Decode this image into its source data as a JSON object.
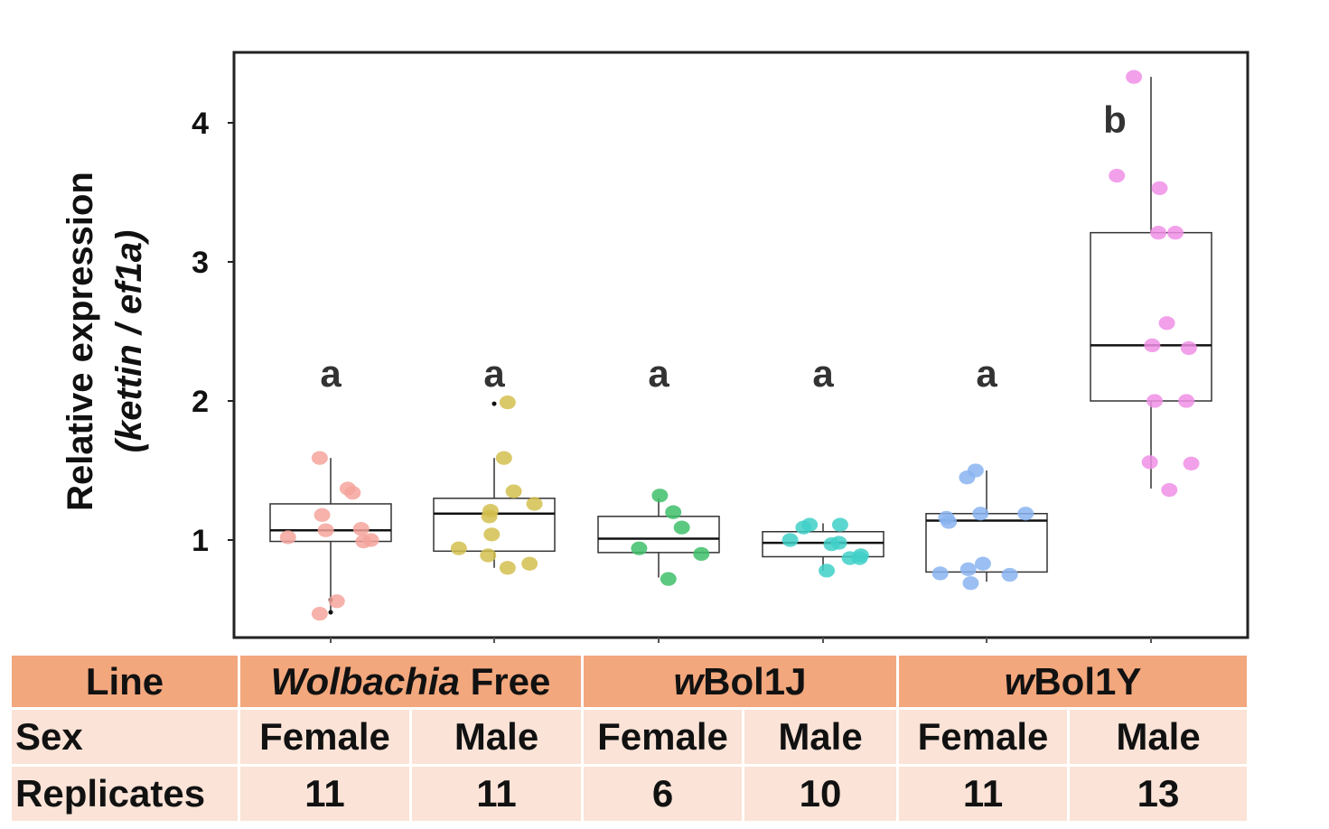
{
  "chart_data": {
    "type": "box",
    "title": "",
    "xlabel": "",
    "ylabel": "Relative expression",
    "ylabel_line2": "(kettin / ef1a)",
    "yticks": [
      1,
      2,
      3,
      4
    ],
    "ylim": [
      0.3,
      4.5
    ],
    "grid": false,
    "point_size": 9,
    "groups": [
      {
        "color": "#f4a49c",
        "letter": "a",
        "box": {
          "whisker_low": 0.47,
          "q1": 0.99,
          "median": 1.07,
          "q3": 1.26,
          "whisker_high": 1.59
        },
        "outliers": [
          0.48,
          0.57
        ],
        "points": [
          [
            -0.35,
            1.02
          ],
          [
            -0.09,
            1.59
          ],
          [
            -0.07,
            1.18
          ],
          [
            -0.04,
            1.07
          ],
          [
            0.14,
            1.37
          ],
          [
            0.18,
            1.34
          ],
          [
            0.25,
            1.08
          ],
          [
            0.27,
            0.99
          ],
          [
            0.33,
            1.0
          ],
          [
            0.05,
            0.56
          ],
          [
            -0.09,
            0.47
          ]
        ]
      },
      {
        "color": "#d4bf4f",
        "letter": "a",
        "box": {
          "whisker_low": 0.8,
          "q1": 0.92,
          "median": 1.19,
          "q3": 1.3,
          "whisker_high": 1.59
        },
        "outliers": [
          1.98
        ],
        "points": [
          [
            0.11,
            1.99
          ],
          [
            0.08,
            1.59
          ],
          [
            -0.03,
            1.21
          ],
          [
            -0.04,
            1.17
          ],
          [
            0.16,
            1.35
          ],
          [
            0.33,
            1.26
          ],
          [
            -0.29,
            0.94
          ],
          [
            -0.02,
            1.04
          ],
          [
            -0.05,
            0.89
          ],
          [
            0.11,
            0.8
          ],
          [
            0.29,
            0.83
          ]
        ]
      },
      {
        "color": "#3fc06a",
        "letter": "a",
        "box": {
          "whisker_low": 0.73,
          "q1": 0.91,
          "median": 1.01,
          "q3": 1.17,
          "whisker_high": 1.3
        },
        "outliers": [],
        "points": [
          [
            0.01,
            1.32
          ],
          [
            0.12,
            1.2
          ],
          [
            0.19,
            1.09
          ],
          [
            -0.16,
            0.94
          ],
          [
            0.35,
            0.9
          ],
          [
            0.08,
            0.72
          ]
        ]
      },
      {
        "color": "#3fd0c8",
        "letter": "a",
        "box": {
          "whisker_low": 0.78,
          "q1": 0.88,
          "median": 0.98,
          "q3": 1.06,
          "whisker_high": 1.12
        },
        "outliers": [],
        "points": [
          [
            -0.27,
            1.0
          ],
          [
            -0.16,
            1.09
          ],
          [
            -0.11,
            1.11
          ],
          [
            0.14,
            1.11
          ],
          [
            0.07,
            0.97
          ],
          [
            0.13,
            0.98
          ],
          [
            0.22,
            0.87
          ],
          [
            0.31,
            0.89
          ],
          [
            0.3,
            0.87
          ],
          [
            0.03,
            0.78
          ]
        ]
      },
      {
        "color": "#8ab4f0",
        "letter": "a",
        "box": {
          "whisker_low": 0.7,
          "q1": 0.77,
          "median": 1.14,
          "q3": 1.19,
          "whisker_high": 1.5
        },
        "outliers": [],
        "points": [
          [
            -0.16,
            1.45
          ],
          [
            -0.09,
            1.5
          ],
          [
            -0.33,
            1.16
          ],
          [
            -0.31,
            1.13
          ],
          [
            -0.05,
            1.19
          ],
          [
            0.32,
            1.19
          ],
          [
            -0.38,
            0.76
          ],
          [
            -0.15,
            0.79
          ],
          [
            -0.13,
            0.69
          ],
          [
            -0.03,
            0.83
          ],
          [
            0.19,
            0.75
          ]
        ]
      },
      {
        "color": "#f08fe6",
        "letter": "b",
        "box": {
          "whisker_low": 1.37,
          "q1": 2.0,
          "median": 2.4,
          "q3": 3.21,
          "whisker_high": 4.33
        },
        "outliers": [],
        "points": [
          [
            -0.14,
            4.33
          ],
          [
            -0.28,
            3.62
          ],
          [
            0.07,
            3.53
          ],
          [
            0.06,
            3.21
          ],
          [
            0.2,
            3.21
          ],
          [
            0.13,
            2.56
          ],
          [
            0.01,
            2.4
          ],
          [
            0.31,
            2.38
          ],
          [
            0.03,
            2.0
          ],
          [
            0.29,
            2.0
          ],
          [
            -0.01,
            1.56
          ],
          [
            0.33,
            1.55
          ],
          [
            0.15,
            1.36
          ]
        ]
      }
    ]
  },
  "table": {
    "line_header": "Line",
    "sex_header": "Sex",
    "replicates_header": "Replicates",
    "lines": [
      {
        "italic": "Wolbachia",
        "rest": " Free"
      },
      {
        "italic": "w",
        "rest": "Bol1J"
      },
      {
        "italic": "w",
        "rest": "Bol1Y"
      }
    ],
    "sexes": [
      "Female",
      "Male",
      "Female",
      "Male",
      "Female",
      "Male"
    ],
    "replicates": [
      "11",
      "11",
      "6",
      "10",
      "11",
      "13"
    ]
  }
}
